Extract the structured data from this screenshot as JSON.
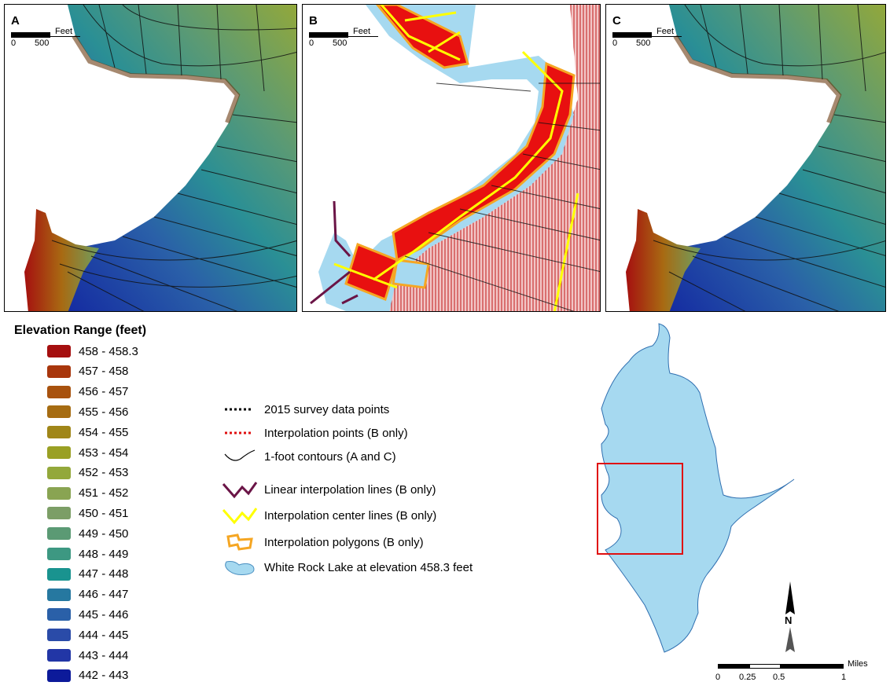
{
  "panels": [
    {
      "label": "A",
      "scale_unit": "Feet",
      "scale_ticks": [
        "0",
        "500"
      ]
    },
    {
      "label": "B",
      "scale_unit": "Feet",
      "scale_ticks": [
        "0",
        "500"
      ]
    },
    {
      "label": "C",
      "scale_unit": "Feet",
      "scale_ticks": [
        "0",
        "500"
      ]
    }
  ],
  "elevation_legend": {
    "title": "Elevation Range (feet)",
    "items": [
      {
        "label": "458 - 458.3",
        "color": "#a50f0f"
      },
      {
        "label": "457 - 458",
        "color": "#a8360c"
      },
      {
        "label": "456 - 457",
        "color": "#a8520e"
      },
      {
        "label": "455 - 456",
        "color": "#a66c12"
      },
      {
        "label": "454 - 455",
        "color": "#a08618"
      },
      {
        "label": "453 - 454",
        "color": "#9aa024"
      },
      {
        "label": "452 - 453",
        "color": "#93a83a"
      },
      {
        "label": "451 - 452",
        "color": "#89a452"
      },
      {
        "label": "450 - 451",
        "color": "#7c9e66"
      },
      {
        "label": "449 - 450",
        "color": "#5b9a74"
      },
      {
        "label": "448 - 449",
        "color": "#3d9882"
      },
      {
        "label": "447 - 448",
        "color": "#19938f"
      },
      {
        "label": "446 - 447",
        "color": "#2678a0"
      },
      {
        "label": "445 - 446",
        "color": "#2a60a8"
      },
      {
        "label": "444 - 445",
        "color": "#2a4ba8"
      },
      {
        "label": "443 - 444",
        "color": "#2236a6"
      },
      {
        "label": "442 - 443",
        "color": "#0c1a9a"
      }
    ]
  },
  "symbol_legend": [
    {
      "label": "2015 survey data points",
      "icon": "black-dotted-line"
    },
    {
      "label": "Interpolation points (B only)",
      "icon": "red-dotted-line"
    },
    {
      "label": "1-foot contours (A and C)",
      "icon": "black-curve"
    },
    {
      "label": "Linear interpolation lines (B only)",
      "icon": "purple-zigzag",
      "color": "#6a1446"
    },
    {
      "label": "Interpolation center lines (B only)",
      "icon": "yellow-zigzag",
      "color": "#ffff00"
    },
    {
      "label": "Interpolation polygons (B only)",
      "icon": "orange-polygon",
      "color": "#f5a623"
    },
    {
      "label": "White Rock Lake at elevation 458.3 feet",
      "icon": "lake-shape",
      "color": "#a6d9f0"
    }
  ],
  "inset_map": {
    "scale_unit": "Miles",
    "scale_ticks": [
      "0",
      "0.25",
      "0.5",
      "1"
    ],
    "north_label": "N",
    "highlight_color": "#e01010"
  }
}
